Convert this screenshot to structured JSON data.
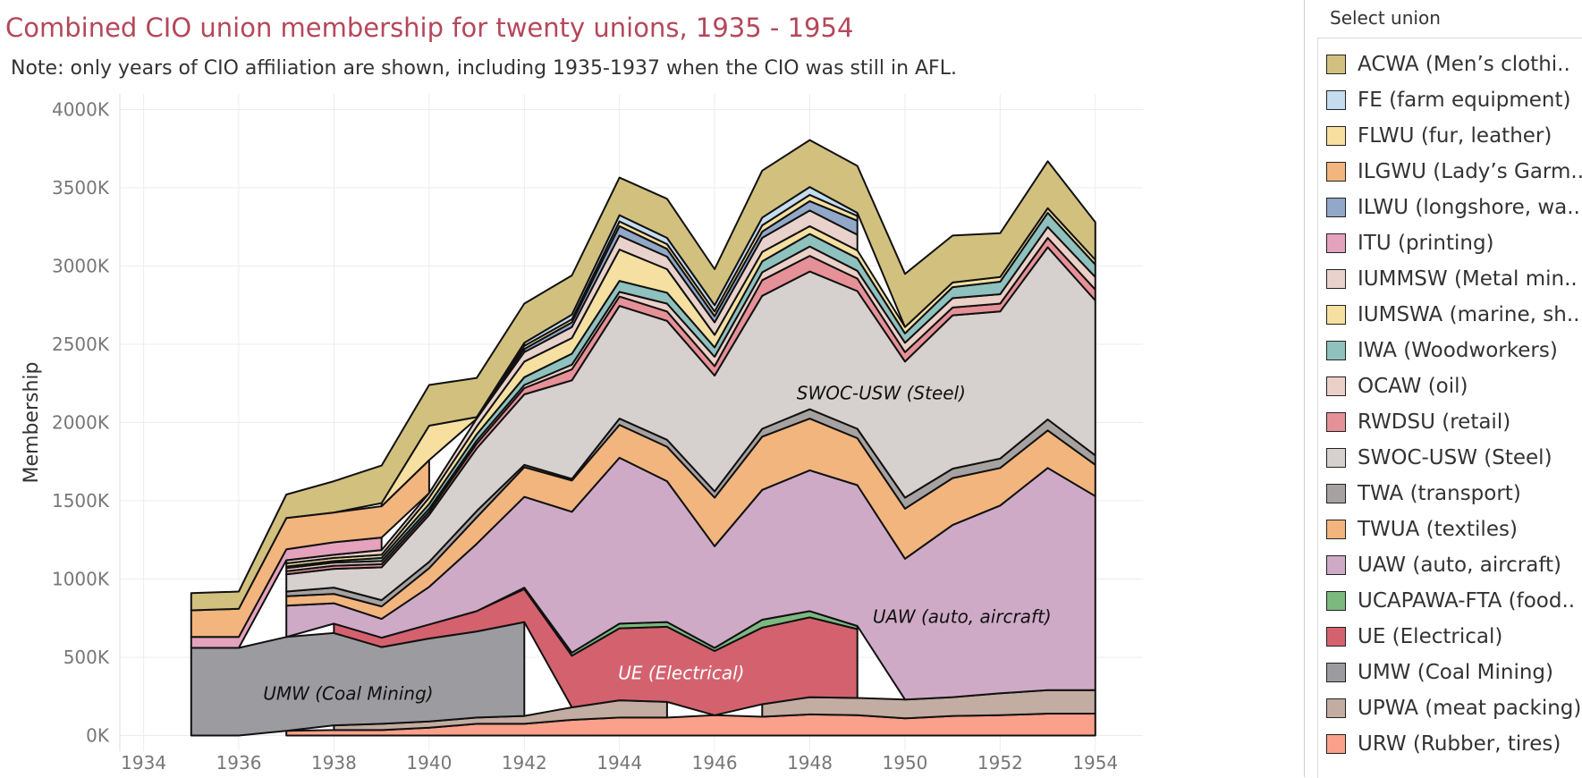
{
  "title": "Combined CIO union membership for twenty unions, 1935 - 1954",
  "note": "Note: only years of CIO affiliation are shown, including 1935-1937 when the CIO was still in AFL.",
  "filter_panel": {
    "title": "Select union"
  },
  "legend": [
    {
      "label": "ACWA (Men’s clothi..",
      "color": "#d2c07e"
    },
    {
      "label": "FE (farm equipment)",
      "color": "#c4dcee"
    },
    {
      "label": "FLWU (fur, leather)",
      "color": "#f7dfa0"
    },
    {
      "label": "ILGWU (Lady’s Garm..",
      "color": "#f2b57e"
    },
    {
      "label": "ILWU (longshore, wa..",
      "color": "#91a8c8"
    },
    {
      "label": "ITU (printing)",
      "color": "#e4a2bc"
    },
    {
      "label": "IUMMSW (Metal min..",
      "color": "#ead2cc"
    },
    {
      "label": "IUMSWA (marine, sh..",
      "color": "#f5e0a2"
    },
    {
      "label": "IWA (Woodworkers)",
      "color": "#8fc1be"
    },
    {
      "label": "OCAW (oil)",
      "color": "#ebd0c8"
    },
    {
      "label": "RWDSU (retail)",
      "color": "#e69198"
    },
    {
      "label": "SWOC-USW (Steel)",
      "color": "#d6d0ce"
    },
    {
      "label": "TWA (transport)",
      "color": "#a6a2a2"
    },
    {
      "label": "TWUA (textiles)",
      "color": "#f2b57e"
    },
    {
      "label": "UAW (auto, aircraft)",
      "color": "#cfaac6"
    },
    {
      "label": "UCAPAWA-FTA (food..",
      "color": "#7cb97e"
    },
    {
      "label": "UE (Electrical)",
      "color": "#d4626e"
    },
    {
      "label": "UMW (Coal Mining)",
      "color": "#9c9ca0"
    },
    {
      "label": "UPWA (meat packing)",
      "color": "#c3aca1"
    },
    {
      "label": "URW (Rubber, tires)",
      "color": "#fba08a"
    }
  ],
  "annotations": [
    {
      "text": "UMW (Coal Mining)",
      "x": 1938.3,
      "y": 230,
      "color": "#111111"
    },
    {
      "text": "UE (Electrical)",
      "x": 1945.3,
      "y": 360,
      "color": "#ffffff"
    },
    {
      "text": "UAW (auto, aircraft)",
      "x": 1951.2,
      "y": 720,
      "color": "#111111"
    },
    {
      "text": "SWOC-USW (Steel)",
      "x": 1949.5,
      "y": 2150,
      "color": "#111111"
    }
  ],
  "chart_data": {
    "type": "area",
    "stacked": true,
    "title": "Combined CIO union membership for twenty unions, 1935 - 1954",
    "xlabel": "",
    "ylabel": "Membership",
    "xlim": [
      1933.5,
      1955
    ],
    "ylim": [
      -100,
      4100
    ],
    "x_ticks": [
      1934,
      1936,
      1938,
      1940,
      1942,
      1944,
      1946,
      1948,
      1950,
      1952,
      1954
    ],
    "y_ticks": [
      0,
      500,
      1000,
      1500,
      2000,
      2500,
      3000,
      3500,
      4000
    ],
    "y_tick_labels": [
      "0K",
      "500K",
      "1000K",
      "1500K",
      "2000K",
      "2500K",
      "3000K",
      "3500K",
      "4000K"
    ],
    "x": [
      1935,
      1936,
      1937,
      1938,
      1939,
      1940,
      1941,
      1942,
      1943,
      1944,
      1945,
      1946,
      1947,
      1948,
      1949,
      1950,
      1951,
      1952,
      1953,
      1954
    ],
    "series_order_bottom_to_top": [
      "URW",
      "UPWA",
      "UMW",
      "UE",
      "UCAPAWA-FTA",
      "UAW",
      "TWUA",
      "TWA",
      "SWOC-USW",
      "RWDSU",
      "OCAW",
      "IWA",
      "IUMSWA",
      "IUMMSW",
      "ITU",
      "ILWU",
      "ILGWU",
      "FLWU",
      "FE",
      "ACWA"
    ],
    "series": [
      {
        "name": "URW (Rubber, tires)",
        "color": "#fba08a",
        "values": [
          0,
          0,
          30,
          35,
          35,
          50,
          75,
          75,
          100,
          115,
          115,
          130,
          120,
          135,
          130,
          110,
          125,
          130,
          140,
          140
        ]
      },
      {
        "name": "UPWA (meat packing)",
        "color": "#c3aca1",
        "values": [
          0,
          0,
          0,
          30,
          40,
          40,
          40,
          50,
          80,
          110,
          100,
          0,
          80,
          110,
          110,
          120,
          120,
          140,
          150,
          150
        ]
      },
      {
        "name": "UMW (Coal Mining)",
        "color": "#9c9ca0",
        "values": [
          560,
          560,
          600,
          590,
          490,
          530,
          550,
          600,
          0,
          0,
          0,
          0,
          0,
          0,
          0,
          0,
          0,
          0,
          0,
          0
        ]
      },
      {
        "name": "UE (Electrical)",
        "color": "#d4626e",
        "values": [
          0,
          0,
          0,
          60,
          60,
          90,
          130,
          210,
          330,
          460,
          480,
          410,
          490,
          510,
          440,
          0,
          0,
          0,
          0,
          0
        ]
      },
      {
        "name": "UCAPAWA-FTA (food..",
        "color": "#7cb97e",
        "values": [
          0,
          0,
          0,
          0,
          0,
          0,
          0,
          10,
          20,
          30,
          30,
          20,
          50,
          40,
          20,
          0,
          0,
          0,
          0,
          0
        ]
      },
      {
        "name": "UAW (auto, aircraft)",
        "color": "#cfaac6",
        "values": [
          0,
          0,
          200,
          130,
          120,
          240,
          430,
          580,
          900,
          1060,
          900,
          650,
          830,
          900,
          900,
          900,
          1100,
          1200,
          1420,
          1240
        ]
      },
      {
        "name": "TWUA (textiles)",
        "color": "#f2b57e",
        "values": [
          0,
          0,
          60,
          60,
          80,
          120,
          170,
          190,
          200,
          210,
          220,
          310,
          340,
          330,
          300,
          320,
          300,
          240,
          240,
          200
        ]
      },
      {
        "name": "TWA (transport)",
        "color": "#a6a2a2",
        "values": [
          0,
          0,
          30,
          40,
          40,
          40,
          40,
          15,
          10,
          40,
          45,
          40,
          50,
          60,
          60,
          70,
          60,
          60,
          70,
          60
        ]
      },
      {
        "name": "SWOC-USW (Steel)",
        "color": "#d6d0ce",
        "values": [
          0,
          0,
          110,
          120,
          210,
          300,
          400,
          450,
          630,
          720,
          760,
          740,
          850,
          880,
          880,
          870,
          980,
          940,
          1100,
          990
        ]
      },
      {
        "name": "RWDSU (retail)",
        "color": "#e69198",
        "values": [
          0,
          0,
          20,
          20,
          20,
          20,
          30,
          40,
          70,
          60,
          60,
          60,
          100,
          100,
          80,
          60,
          50,
          50,
          60,
          70
        ]
      },
      {
        "name": "OCAW (oil)",
        "color": "#ebd0c8",
        "values": [
          0,
          0,
          20,
          20,
          20,
          20,
          20,
          20,
          30,
          30,
          50,
          60,
          50,
          60,
          50,
          60,
          60,
          60,
          70,
          80
        ]
      },
      {
        "name": "IWA (Woodworkers)",
        "color": "#8fc1be",
        "values": [
          0,
          0,
          10,
          10,
          20,
          30,
          40,
          50,
          70,
          70,
          70,
          60,
          70,
          80,
          80,
          60,
          70,
          80,
          90,
          80
        ]
      },
      {
        "name": "IUMSWA (marine, sh..",
        "color": "#f5e0a2",
        "values": [
          0,
          0,
          20,
          20,
          20,
          40,
          50,
          100,
          100,
          200,
          150,
          80,
          60,
          50,
          50,
          40,
          30,
          30,
          30,
          30
        ]
      },
      {
        "name": "IUMMSW (Metal min..",
        "color": "#ead2cc",
        "values": [
          0,
          0,
          20,
          20,
          30,
          30,
          50,
          60,
          70,
          90,
          80,
          80,
          90,
          100,
          100,
          0,
          0,
          0,
          0,
          0
        ]
      },
      {
        "name": "ITU (printing)",
        "color": "#e4a2bc",
        "values": [
          70,
          70,
          70,
          80,
          80,
          0,
          0,
          0,
          0,
          0,
          0,
          0,
          0,
          0,
          0,
          0,
          0,
          0,
          0,
          0
        ]
      },
      {
        "name": "ILWU (longshore, wa..",
        "color": "#91a8c8",
        "values": [
          0,
          0,
          0,
          0,
          0,
          0,
          0,
          20,
          30,
          60,
          50,
          40,
          40,
          60,
          90,
          0,
          0,
          0,
          0,
          0
        ]
      },
      {
        "name": "ILGWU (Lady’s Garm..",
        "color": "#f2b57e",
        "values": [
          170,
          180,
          200,
          190,
          200,
          210,
          0,
          0,
          0,
          0,
          0,
          0,
          0,
          0,
          0,
          0,
          0,
          0,
          0,
          0
        ]
      },
      {
        "name": "FLWU (fur, leather)",
        "color": "#f7dfa0",
        "values": [
          0,
          0,
          0,
          0,
          20,
          220,
          10,
          20,
          20,
          30,
          30,
          30,
          40,
          40,
          30,
          0,
          0,
          0,
          0,
          0
        ]
      },
      {
        "name": "FE (farm equipment)",
        "color": "#c4dcee",
        "values": [
          0,
          0,
          0,
          0,
          0,
          0,
          0,
          20,
          30,
          40,
          40,
          40,
          50,
          50,
          20,
          0,
          0,
          0,
          0,
          0
        ]
      },
      {
        "name": "ACWA (Men’s clothi..",
        "color": "#d2c07e",
        "values": [
          110,
          110,
          150,
          200,
          240,
          260,
          250,
          250,
          250,
          240,
          250,
          230,
          300,
          300,
          300,
          340,
          300,
          280,
          300,
          240
        ]
      }
    ]
  }
}
